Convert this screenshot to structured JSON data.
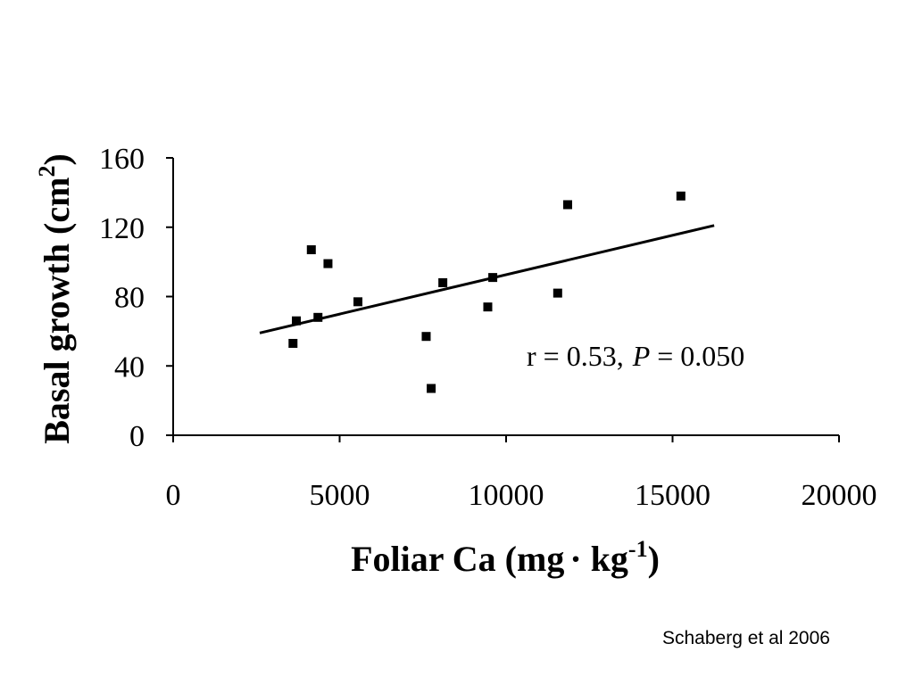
{
  "source_credit": "Schaberg et al 2006",
  "chart_data": {
    "type": "scatter",
    "title": "",
    "xlabel": "Foliar Ca (mg",
    "xlabel_dot": "·",
    "xlabel_unit": " kg",
    "xlabel_exp": "-1",
    "xlabel_close": ")",
    "ylabel": "Basal growth (cm",
    "ylabel_exp": "2",
    "ylabel_close": ")",
    "xlim": [
      0,
      20000
    ],
    "ylim": [
      0,
      160
    ],
    "x_ticks": [
      0,
      5000,
      10000,
      15000,
      20000
    ],
    "x_tick_labels": [
      "0",
      "5000",
      "10000",
      "15000",
      "20000"
    ],
    "y_ticks": [
      0,
      40,
      80,
      120,
      160
    ],
    "y_tick_labels": [
      "0",
      "40",
      "80",
      "120",
      "160"
    ],
    "grid": false,
    "marker_color": "#000000",
    "points": [
      {
        "x": 3600,
        "y": 53
      },
      {
        "x": 3700,
        "y": 66
      },
      {
        "x": 4150,
        "y": 107
      },
      {
        "x": 4350,
        "y": 68
      },
      {
        "x": 4650,
        "y": 99
      },
      {
        "x": 5550,
        "y": 77
      },
      {
        "x": 7600,
        "y": 57
      },
      {
        "x": 7750,
        "y": 27
      },
      {
        "x": 8100,
        "y": 88
      },
      {
        "x": 9450,
        "y": 74
      },
      {
        "x": 9600,
        "y": 91
      },
      {
        "x": 11550,
        "y": 82
      },
      {
        "x": 11850,
        "y": 133
      },
      {
        "x": 15250,
        "y": 138
      }
    ],
    "trendline": {
      "x": [
        2600,
        16250
      ],
      "y": [
        59,
        121
      ]
    },
    "annotation": {
      "prefix": "r = 0.53,",
      "p_symbol": "P",
      "suffix": " = 0.050"
    }
  }
}
